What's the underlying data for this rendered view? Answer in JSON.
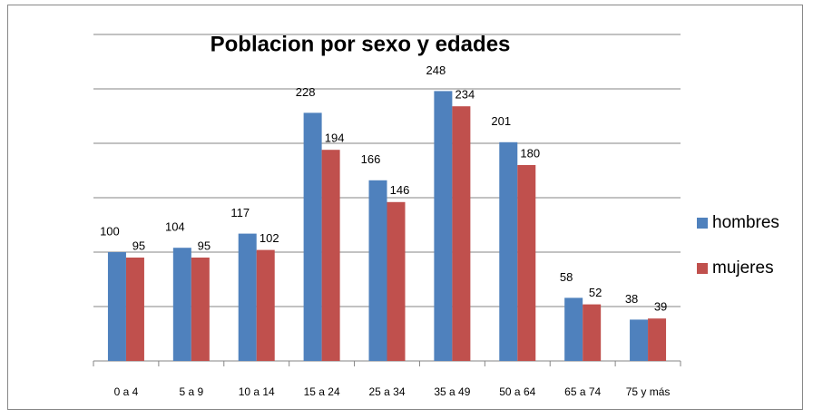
{
  "chart_data": {
    "type": "bar",
    "title": "Poblacion por sexo y edades",
    "categories": [
      "0 a 4",
      "5 a 9",
      "10 a 14",
      "15 a 24",
      "25 a 34",
      "35 a 49",
      "50 a 64",
      "65 a 74",
      "75 y más"
    ],
    "series": [
      {
        "name": "hombres",
        "color": "#4f81bd",
        "values": [
          100,
          104,
          117,
          228,
          166,
          248,
          201,
          58,
          38
        ]
      },
      {
        "name": "mujeres",
        "color": "#c0504d",
        "values": [
          95,
          95,
          102,
          194,
          146,
          234,
          180,
          52,
          39
        ]
      }
    ],
    "ylim": [
      0,
      300
    ],
    "yticks": [
      0,
      50,
      100,
      150,
      200,
      250,
      300
    ],
    "grid": true,
    "legend": "right"
  }
}
